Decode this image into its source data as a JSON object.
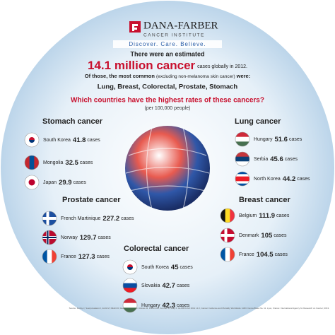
{
  "header": {
    "logo_name": "DANA-FARBER",
    "logo_sub": "CANCER INSTITUTE",
    "tagline": "Discover. Care. Believe."
  },
  "intro": {
    "line1": "There were an estimated",
    "highlight": "14.1 million cancer",
    "highlight_rest": "cases globally in 2012.",
    "line3": "Of those, the most common",
    "line3_note": "(excluding non-melanoma skin cancer)",
    "line3_end": "were:",
    "list": "Lung, Breast, Colorectal, Prostate, Stomach",
    "question": "Which countries have the highest rates of these cancers?",
    "note": "(per 100,000 people)"
  },
  "unit": "cases",
  "sections": [
    {
      "title": "Stomach cancer",
      "entries": [
        {
          "country": "South Korea",
          "value": 41.8
        },
        {
          "country": "Mongolia",
          "value": 32.5
        },
        {
          "country": "Japan",
          "value": 29.9
        }
      ]
    },
    {
      "title": "Lung cancer",
      "entries": [
        {
          "country": "Hungary",
          "value": 51.6
        },
        {
          "country": "Serbia",
          "value": 45.6
        },
        {
          "country": "North Korea",
          "value": 44.2
        }
      ]
    },
    {
      "title": "Prostate cancer",
      "entries": [
        {
          "country": "French Martinique",
          "value": 227.2
        },
        {
          "country": "Norway",
          "value": 129.7
        },
        {
          "country": "France",
          "value": 127.3
        }
      ]
    },
    {
      "title": "Breast cancer",
      "entries": [
        {
          "country": "Belgium",
          "value": 111.9
        },
        {
          "country": "Denmark",
          "value": 105
        },
        {
          "country": "France",
          "value": 104.5
        }
      ]
    },
    {
      "title": "Colorectal cancer",
      "entries": [
        {
          "country": "South Korea",
          "value": 45
        },
        {
          "country": "Slovakia",
          "value": 42.7
        },
        {
          "country": "Hungary",
          "value": 42.3
        }
      ]
    }
  ],
  "source": "Source: Ferlay J, Soerjomataram I, Ervik M, Dikshit R, Eser S, Mathers C, Rebelo M, Parkin DM, Forman D, Bray F. GLOBOCAN 2012 v1.0, Cancer Incidence and Mortality Worldwide: IARC CancerBase No. 11. Lyon, France: International Agency for Research on Cancer; 2013."
}
